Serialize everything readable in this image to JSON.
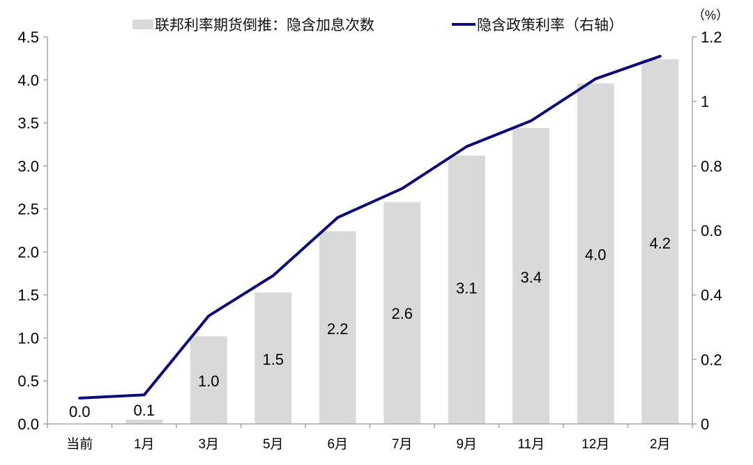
{
  "chart_data": {
    "type": "bar+line",
    "categories": [
      "当前",
      "1月",
      "3月",
      "5月",
      "6月",
      "7月",
      "9月",
      "11月",
      "12月",
      "2月"
    ],
    "series": [
      {
        "name": "联邦利率期货倒推：隐含加息次数",
        "type": "bar",
        "axis": "left",
        "values": [
          0.0,
          0.05,
          1.02,
          1.53,
          2.24,
          2.58,
          3.12,
          3.44,
          3.96,
          4.24
        ],
        "labels": [
          "0.0",
          "0.1",
          "1.0",
          "1.5",
          "2.2",
          "2.6",
          "3.1",
          "3.4",
          "4.0",
          "4.2"
        ],
        "color": "#d9d9d9"
      },
      {
        "name": "隐含政策利率（右轴）",
        "type": "line",
        "axis": "right",
        "values": [
          0.08,
          0.09,
          0.335,
          0.46,
          0.64,
          0.73,
          0.86,
          0.94,
          1.07,
          1.14
        ],
        "color": "#0a0a78"
      }
    ],
    "left_axis": {
      "min": 0,
      "max": 4.5,
      "ticks": [
        "0.0",
        "0.5",
        "1.0",
        "1.5",
        "2.0",
        "2.5",
        "3.0",
        "3.5",
        "4.0",
        "4.5"
      ]
    },
    "right_axis": {
      "min": 0,
      "max": 1.2,
      "unit": "（%）",
      "ticks": [
        "0",
        "0.2",
        "0.4",
        "0.6",
        "0.8",
        "1",
        "1.2"
      ]
    },
    "legend_position": "top",
    "grid": false
  }
}
